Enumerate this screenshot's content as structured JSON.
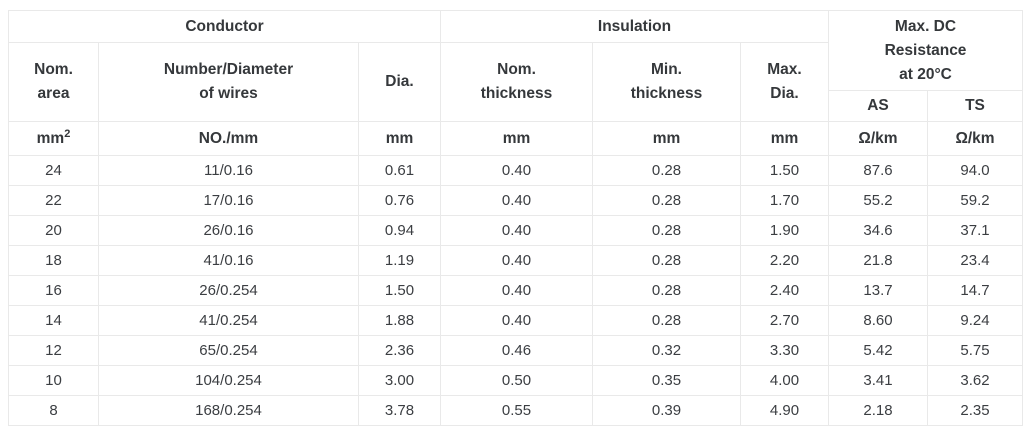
{
  "table": {
    "title_semantic": "wire-specification-table",
    "colors": {
      "text_header": "#35383b",
      "text_data": "#3b3e42",
      "border": "#e9e9e9",
      "background": "#ffffff"
    },
    "header": {
      "groups": [
        {
          "label": "Conductor"
        },
        {
          "label": "Insulation"
        },
        {
          "label": "Max. DC\nResistance\nat 20°C"
        }
      ],
      "subheaders": [
        "Nom.\narea",
        "Number/Diameter\nof wires",
        "Dia.",
        "Nom.\nthickness",
        "Min.\nthickness",
        "Max.\nDia."
      ],
      "resistance_columns": [
        "AS",
        "TS"
      ],
      "units": {
        "area_base": "mm",
        "area_exponent": "2",
        "others": [
          "NO./mm",
          "mm",
          "mm",
          "mm",
          "mm",
          "Ω/km",
          "Ω/km"
        ]
      }
    },
    "rows": [
      [
        "24",
        "11/0.16",
        "0.61",
        "0.40",
        "0.28",
        "1.50",
        "87.6",
        "94.0"
      ],
      [
        "22",
        "17/0.16",
        "0.76",
        "0.40",
        "0.28",
        "1.70",
        "55.2",
        "59.2"
      ],
      [
        "20",
        "26/0.16",
        "0.94",
        "0.40",
        "0.28",
        "1.90",
        "34.6",
        "37.1"
      ],
      [
        "18",
        "41/0.16",
        "1.19",
        "0.40",
        "0.28",
        "2.20",
        "21.8",
        "23.4"
      ],
      [
        "16",
        "26/0.254",
        "1.50",
        "0.40",
        "0.28",
        "2.40",
        "13.7",
        "14.7"
      ],
      [
        "14",
        "41/0.254",
        "1.88",
        "0.40",
        "0.28",
        "2.70",
        "8.60",
        "9.24"
      ],
      [
        "12",
        "65/0.254",
        "2.36",
        "0.46",
        "0.32",
        "3.30",
        "5.42",
        "5.75"
      ],
      [
        "10",
        "104/0.254",
        "3.00",
        "0.50",
        "0.35",
        "4.00",
        "3.41",
        "3.62"
      ],
      [
        "8",
        "168/0.254",
        "3.78",
        "0.55",
        "0.39",
        "4.90",
        "2.18",
        "2.35"
      ]
    ]
  }
}
